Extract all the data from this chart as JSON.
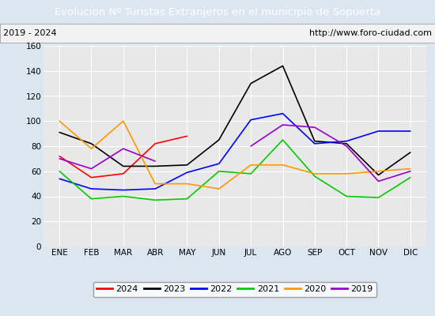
{
  "title": "Evolucion Nº Turistas Extranjeros en el municipio de Sopuerta",
  "subtitle_left": "2019 - 2024",
  "subtitle_right": "http://www.foro-ciudad.com",
  "x_labels": [
    "ENE",
    "FEB",
    "MAR",
    "ABR",
    "MAY",
    "JUN",
    "JUL",
    "AGO",
    "SEP",
    "OCT",
    "NOV",
    "DIC"
  ],
  "ylim": [
    0,
    160
  ],
  "yticks": [
    0,
    20,
    40,
    60,
    80,
    100,
    120,
    140,
    160
  ],
  "series": {
    "2024": {
      "color": "#ff0000",
      "values": [
        72,
        55,
        58,
        82,
        88,
        null,
        null,
        null,
        null,
        null,
        null,
        null
      ]
    },
    "2023": {
      "color": "#000000",
      "values": [
        91,
        82,
        64,
        64,
        65,
        85,
        130,
        144,
        84,
        82,
        57,
        75
      ]
    },
    "2022": {
      "color": "#0000ff",
      "values": [
        54,
        46,
        45,
        46,
        59,
        66,
        101,
        106,
        82,
        84,
        92,
        92
      ]
    },
    "2021": {
      "color": "#00cc00",
      "values": [
        60,
        38,
        40,
        37,
        38,
        60,
        58,
        85,
        56,
        40,
        39,
        55
      ]
    },
    "2020": {
      "color": "#ff9900",
      "values": [
        100,
        78,
        100,
        50,
        50,
        46,
        65,
        65,
        58,
        58,
        60,
        62
      ]
    },
    "2019": {
      "color": "#9900cc",
      "values": [
        70,
        62,
        78,
        68,
        null,
        null,
        80,
        97,
        95,
        80,
        52,
        60
      ]
    }
  },
  "title_bg_color": "#4472c4",
  "title_text_color": "#ffffff",
  "subtitle_bg_color": "#f2f2f2",
  "plot_bg_color": "#e8e8e8",
  "fig_bg_color": "#dce6f1",
  "grid_color": "#ffffff",
  "legend_order": [
    "2024",
    "2023",
    "2022",
    "2021",
    "2020",
    "2019"
  ]
}
